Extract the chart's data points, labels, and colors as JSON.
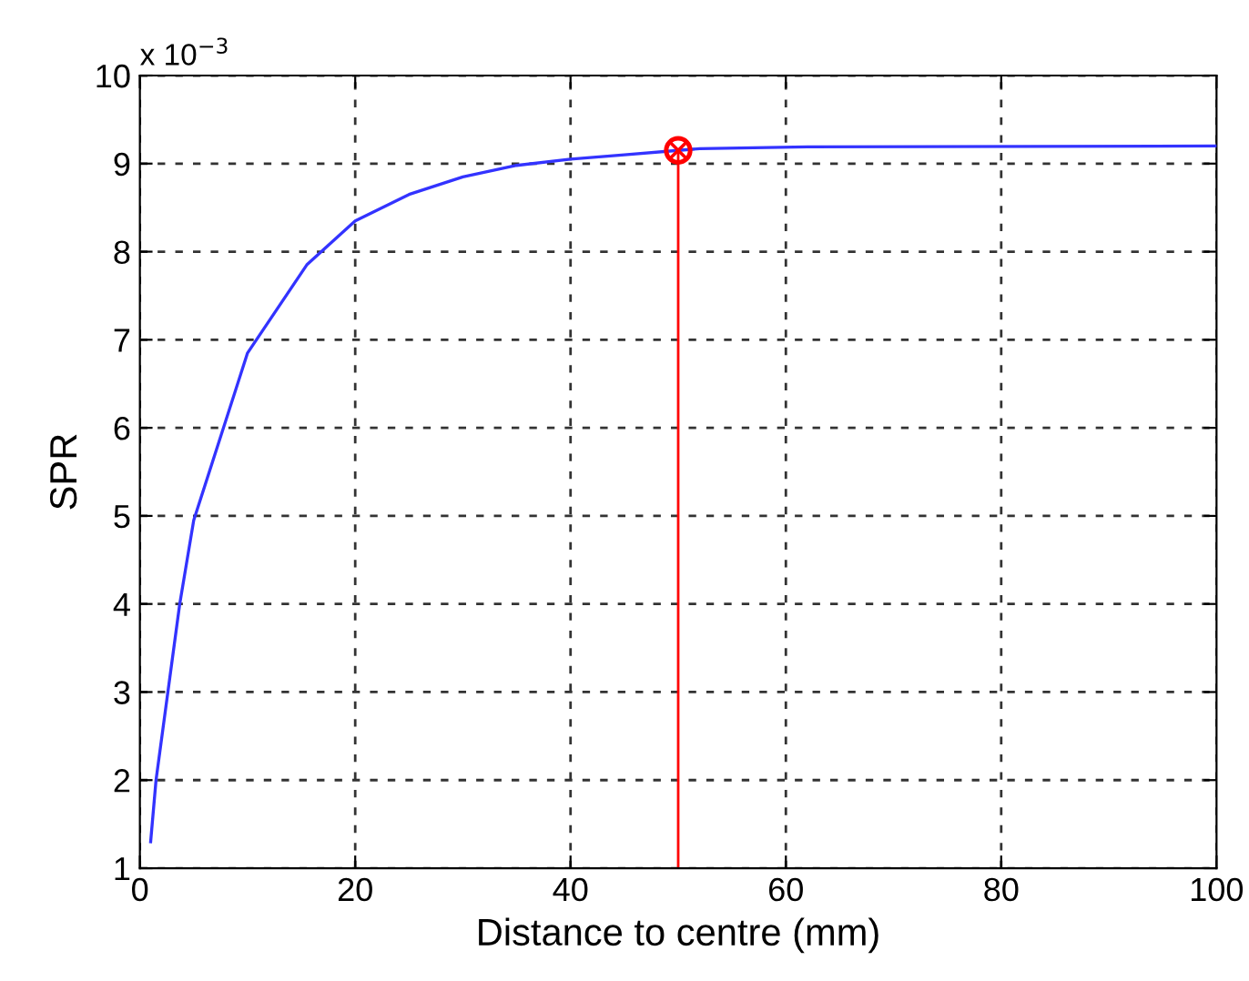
{
  "chart_data": {
    "type": "line",
    "xlabel": "Distance to centre (mm)",
    "ylabel": "SPR",
    "annotations": [
      "x 10$^{−3}$"
    ],
    "xlim": [
      0,
      100
    ],
    "xticks": [
      0,
      20,
      40,
      60,
      80,
      100
    ],
    "ylim": [
      1,
      10
    ],
    "yticks": [
      1,
      2,
      3,
      4,
      5,
      6,
      7,
      8,
      9,
      10
    ],
    "grid": true,
    "line_style": "solid",
    "series": [
      {
        "color": "#3333ff",
        "x": [
          1,
          1.5,
          2.6,
          3.7,
          5,
          10,
          15.5,
          20,
          25,
          30,
          35,
          40,
          45,
          50,
          52,
          62,
          100
        ],
        "values": [
          1.3,
          2,
          3,
          4,
          4.95,
          6.85,
          7.85,
          8.35,
          8.65,
          8.85,
          8.98,
          9.05,
          9.1,
          9.15,
          9.17,
          9.19,
          9.2
        ]
      },
      {
        "type": "lollipop",
        "color": "#ff0000",
        "x": [
          50
        ],
        "values": [
          9.15
        ]
      }
    ]
  }
}
